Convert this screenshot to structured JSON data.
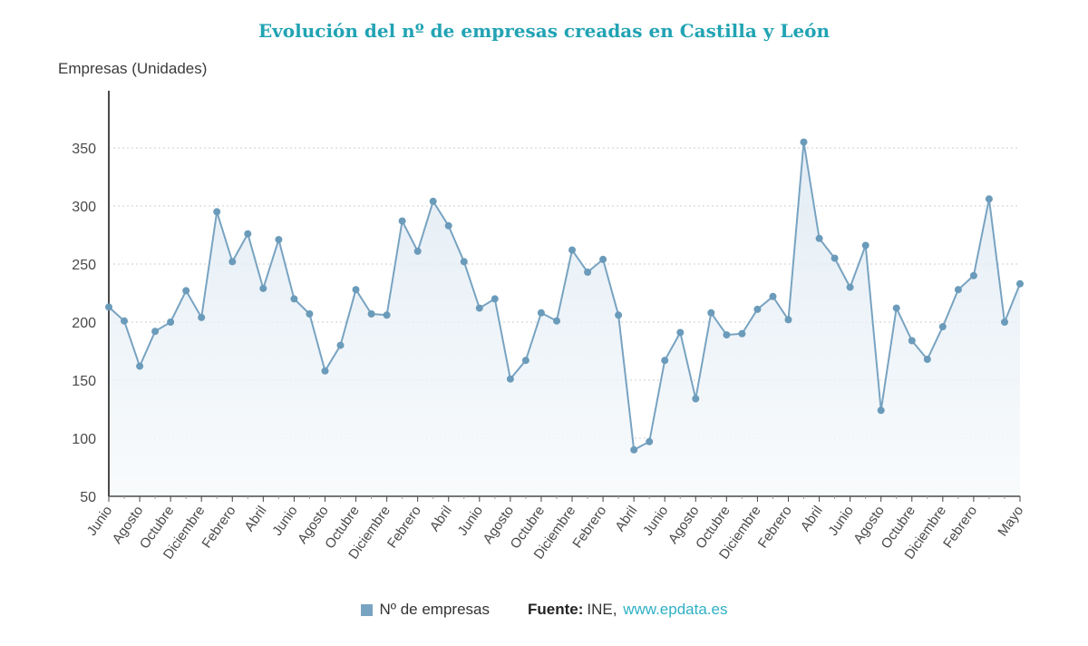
{
  "page": {
    "title": "Evolución del nº de empresas creadas en Castilla y León",
    "y_axis_title": "Empresas (Unidades)",
    "legend_label": "Nº de empresas",
    "source_label": "Fuente:",
    "source_name": "INE,",
    "source_link": "www.epdata.es"
  },
  "chart_data": {
    "type": "area",
    "title": "Evolución del nº de empresas creadas en Castilla y León",
    "xlabel": "",
    "ylabel": "Empresas (Unidades)",
    "series_name": "Nº de empresas",
    "ylim": [
      50,
      400
    ],
    "yticks": [
      50,
      100,
      150,
      200,
      250,
      300,
      350
    ],
    "grid": true,
    "legend_position": "bottom",
    "values": [
      213,
      201,
      162,
      192,
      200,
      227,
      204,
      295,
      252,
      276,
      229,
      271,
      220,
      207,
      158,
      180,
      228,
      207,
      206,
      287,
      261,
      304,
      283,
      252,
      212,
      220,
      151,
      167,
      208,
      201,
      262,
      243,
      254,
      206,
      90,
      97,
      167,
      191,
      134,
      208,
      189,
      190,
      211,
      222,
      202,
      355,
      272,
      255,
      230,
      266,
      124,
      212,
      184,
      168,
      196,
      228,
      240,
      306,
      200,
      233
    ],
    "tick_labels": [
      {
        "index": 0,
        "label": "Junio"
      },
      {
        "index": 2,
        "label": "Agosto"
      },
      {
        "index": 4,
        "label": "Octubre"
      },
      {
        "index": 6,
        "label": "Diciembre"
      },
      {
        "index": 8,
        "label": "Febrero"
      },
      {
        "index": 10,
        "label": "Abril"
      },
      {
        "index": 12,
        "label": "Junio"
      },
      {
        "index": 14,
        "label": "Agosto"
      },
      {
        "index": 16,
        "label": "Octubre"
      },
      {
        "index": 18,
        "label": "Diciembre"
      },
      {
        "index": 20,
        "label": "Febrero"
      },
      {
        "index": 22,
        "label": "Abril"
      },
      {
        "index": 24,
        "label": "Junio"
      },
      {
        "index": 26,
        "label": "Agosto"
      },
      {
        "index": 28,
        "label": "Octubre"
      },
      {
        "index": 30,
        "label": "Diciembre"
      },
      {
        "index": 32,
        "label": "Febrero"
      },
      {
        "index": 34,
        "label": "Abril"
      },
      {
        "index": 36,
        "label": "Junio"
      },
      {
        "index": 38,
        "label": "Agosto"
      },
      {
        "index": 40,
        "label": "Octubre"
      },
      {
        "index": 42,
        "label": "Diciembre"
      },
      {
        "index": 44,
        "label": "Febrero"
      },
      {
        "index": 46,
        "label": "Abril"
      },
      {
        "index": 48,
        "label": "Junio"
      },
      {
        "index": 50,
        "label": "Agosto"
      },
      {
        "index": 52,
        "label": "Octubre"
      },
      {
        "index": 54,
        "label": "Diciembre"
      },
      {
        "index": 56,
        "label": "Febrero"
      },
      {
        "index": 59,
        "label": "Mayo"
      }
    ],
    "colors": {
      "line": "#78a3c1",
      "marker": "#6b9bba",
      "area_top": "#dce8f2",
      "area_bottom": "#f7fafc",
      "title": "#21a3b4",
      "link": "#2fb0c4",
      "axis": "#4a4a4a",
      "grid": "#cccccc",
      "text": "#333333"
    }
  }
}
